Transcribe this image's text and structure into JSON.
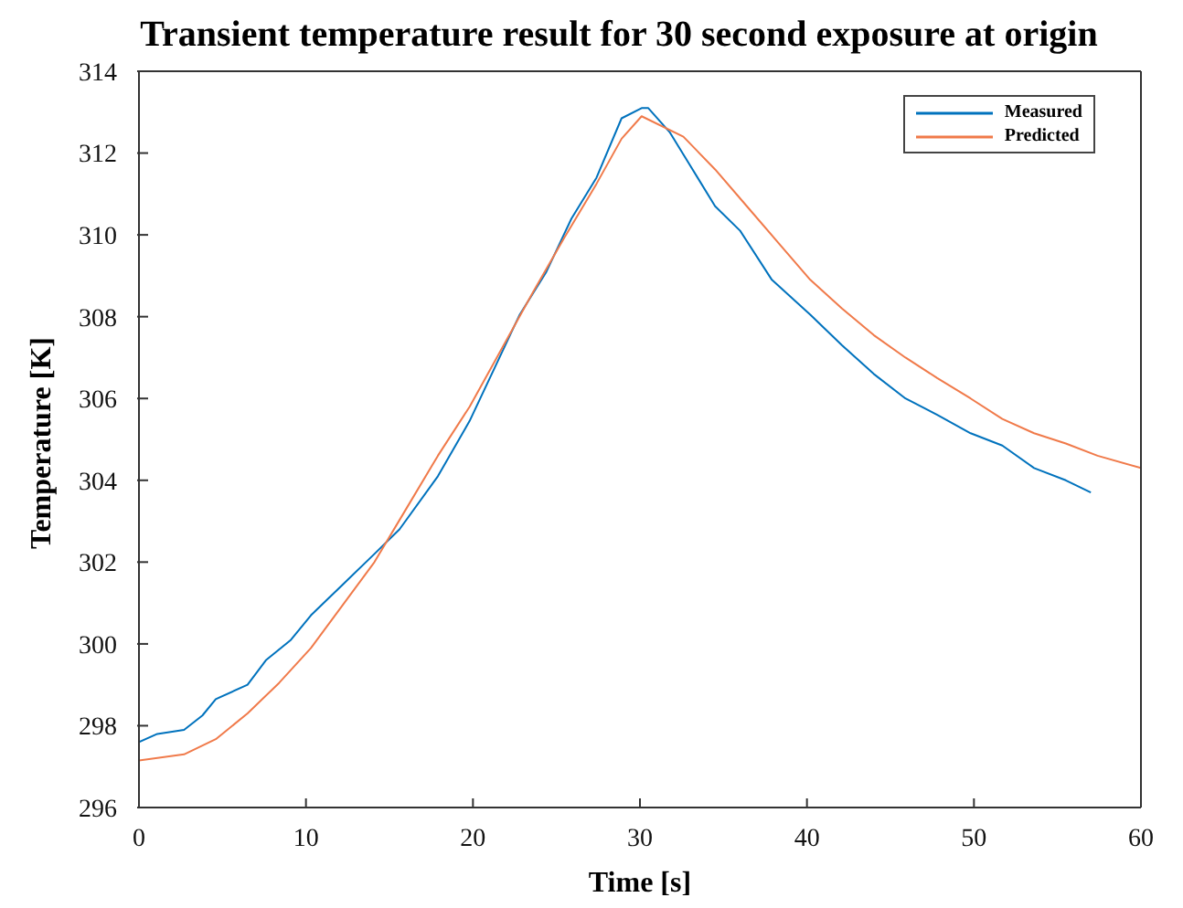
{
  "chart_data": {
    "type": "line",
    "title": "Transient temperature result for 30 second exposure at origin",
    "xlabel": "Time [s]",
    "ylabel": "Temperature [K]",
    "xlim": [
      0,
      60
    ],
    "xticks": [
      0,
      10,
      20,
      30,
      40,
      50,
      60
    ],
    "ylim": [
      296,
      314
    ],
    "yticks": [
      296,
      298,
      300,
      302,
      304,
      306,
      308,
      310,
      312,
      314
    ],
    "legend": "top right",
    "marker": "none",
    "line_style": "solid",
    "series": [
      {
        "name": "Measured",
        "color": "#0072bd",
        "x": [
          0,
          1.1,
          2.7,
          3.8,
          4.6,
          6.5,
          7.6,
          9.1,
          10.3,
          12.2,
          14.1,
          15.6,
          17.9,
          19.8,
          21.3,
          22.8,
          24.4,
          25.9,
          27.4,
          28.9,
          30.1,
          30.5,
          31.8,
          33,
          34.5,
          36,
          37.9,
          40.2,
          42.1,
          44,
          45.9,
          47.8,
          49.8,
          51.7,
          53.6,
          55.5,
          57
        ],
        "values": [
          297.6,
          297.8,
          297.9,
          298.25,
          298.65,
          299.0,
          299.6,
          300.1,
          300.7,
          301.45,
          302.2,
          302.8,
          304.1,
          305.45,
          306.75,
          308.05,
          309.1,
          310.4,
          311.4,
          312.85,
          313.1,
          313.1,
          312.5,
          311.7,
          310.7,
          310.1,
          308.9,
          308.05,
          307.3,
          306.6,
          306.0,
          305.6,
          305.15,
          304.85,
          304.3,
          304.0,
          303.7
        ]
      },
      {
        "name": "Predicted",
        "color": "#f07a4a",
        "x": [
          0,
          2.7,
          4.6,
          6.5,
          8.4,
          10.3,
          12.2,
          14.1,
          16,
          17.9,
          19.8,
          21.7,
          23.6,
          25.5,
          27.4,
          28.9,
          30.1,
          32.6,
          34.5,
          36.4,
          38.3,
          40.2,
          42.1,
          44,
          45.9,
          47.8,
          49.8,
          51.7,
          53.6,
          55.5,
          57.4,
          60
        ],
        "values": [
          297.15,
          297.3,
          297.67,
          298.3,
          299.05,
          299.9,
          300.95,
          302.0,
          303.3,
          304.6,
          305.8,
          307.2,
          308.6,
          309.95,
          311.25,
          312.35,
          312.9,
          312.4,
          311.6,
          310.7,
          309.8,
          308.9,
          308.2,
          307.55,
          307.0,
          306.5,
          306.0,
          305.5,
          305.15,
          304.9,
          304.6,
          304.3
        ]
      }
    ]
  }
}
